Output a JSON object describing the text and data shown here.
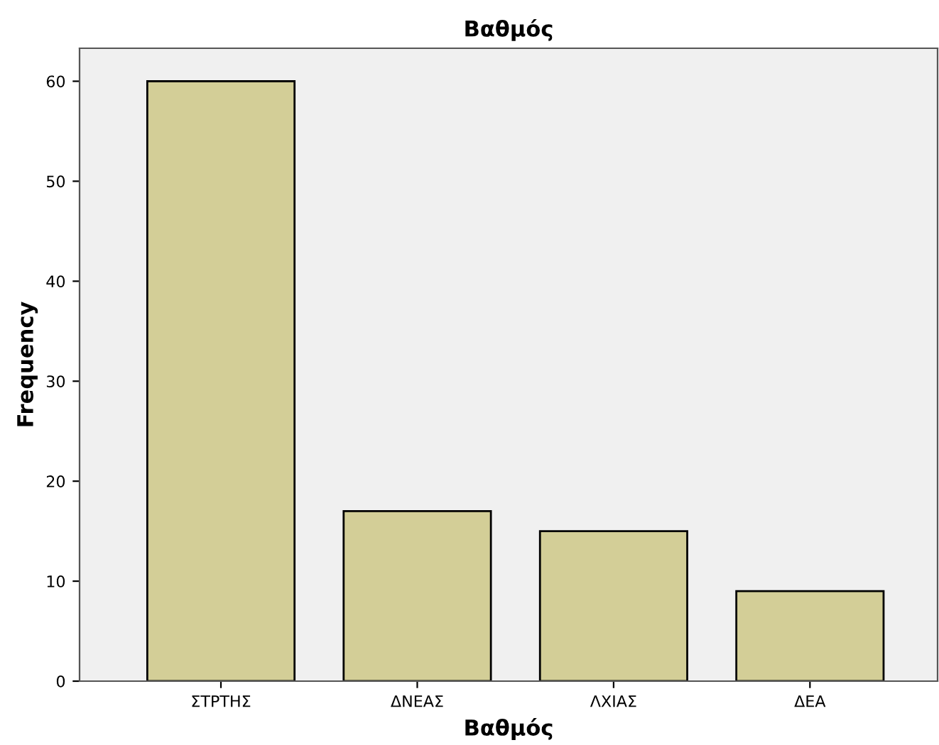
{
  "chart_data": {
    "type": "bar",
    "title": "Βαθμός",
    "xlabel": "Βαθμός",
    "ylabel": "Frequency",
    "categories": [
      "ΣΤΡΤΗΣ",
      "ΔΝΕΑΣ",
      "ΛΧΙΑΣ",
      "ΔΕΑ"
    ],
    "values": [
      60,
      17,
      15,
      9
    ],
    "color": "#d3ce97",
    "ylim": [
      0,
      63.3
    ],
    "yticks": [
      0,
      10,
      20,
      30,
      40,
      50,
      60
    ],
    "grid": false
  }
}
